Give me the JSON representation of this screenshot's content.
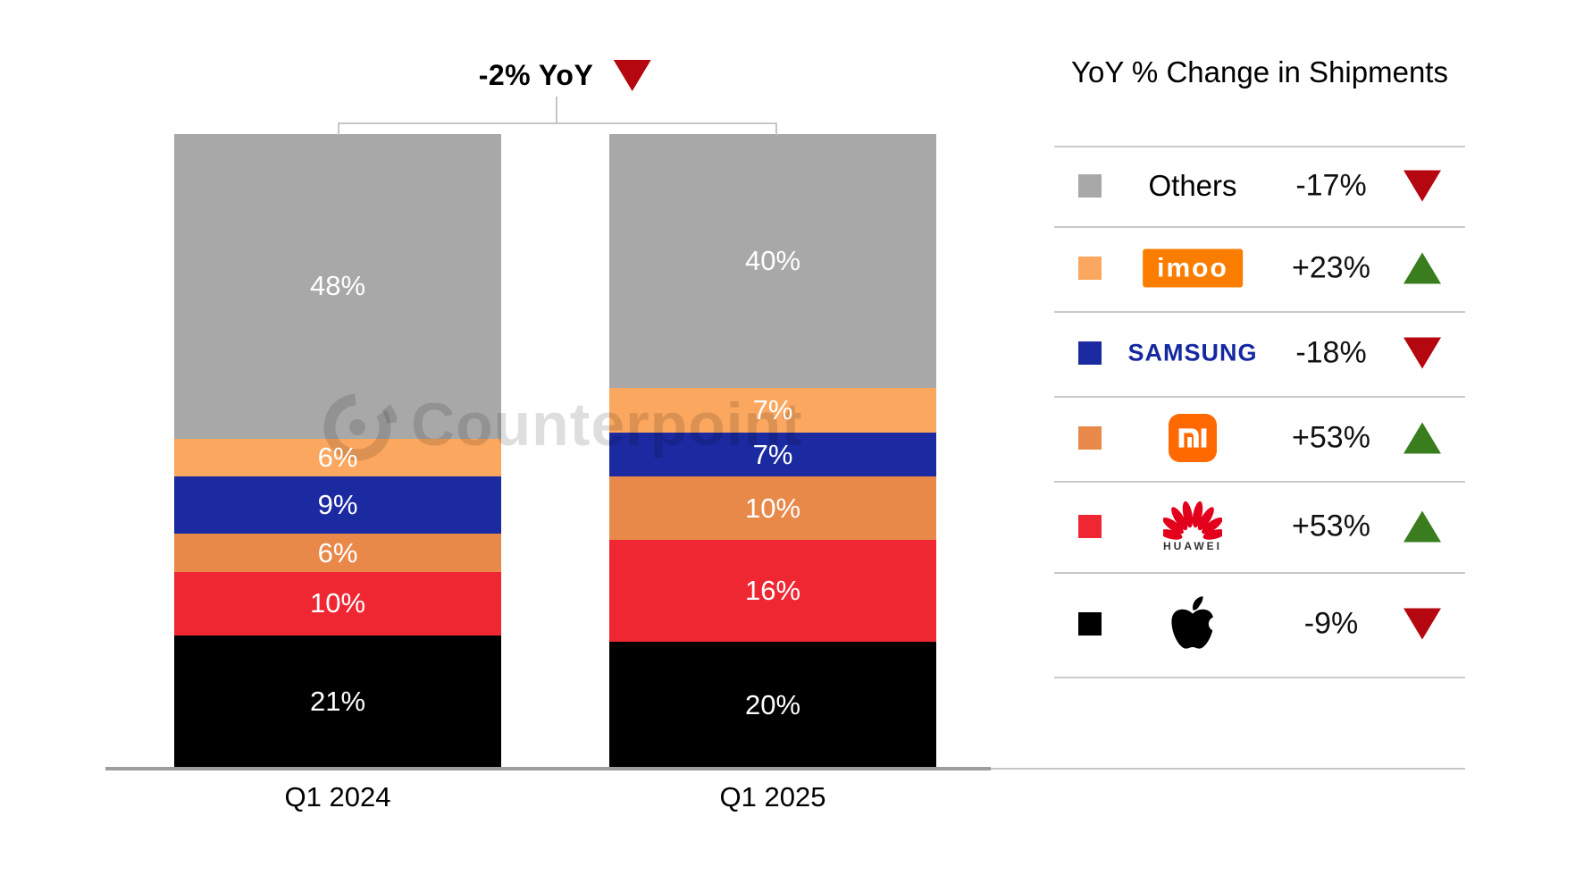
{
  "title": {
    "label": "-2% YoY",
    "direction": "down"
  },
  "watermark": {
    "text": "Counterpoint"
  },
  "chart_data": {
    "type": "bar",
    "stacked": true,
    "title": "-2% YoY",
    "unit": "%",
    "categories": [
      "Q1 2024",
      "Q1 2025"
    ],
    "series": [
      {
        "name": "Apple",
        "color": "#000000",
        "values": [
          21,
          20
        ]
      },
      {
        "name": "Huawei",
        "color": "#ee2733",
        "values": [
          10,
          16
        ]
      },
      {
        "name": "Xiaomi",
        "color": "#e8894a",
        "values": [
          6,
          10
        ]
      },
      {
        "name": "Samsung",
        "color": "#1b2aa0",
        "values": [
          9,
          7
        ]
      },
      {
        "name": "imoo",
        "color": "#fba75f",
        "values": [
          6,
          7
        ]
      },
      {
        "name": "Others",
        "color": "#a8a8a8",
        "values": [
          48,
          40
        ]
      }
    ],
    "ylim": [
      0,
      100
    ],
    "grid": false,
    "legend_position": "right"
  },
  "legend": {
    "header": "YoY % Change in Shipments",
    "rows": [
      {
        "brand": "Others",
        "logo_text": "Others",
        "change": "-17%",
        "direction": "down",
        "swatch": "#a8a8a8"
      },
      {
        "brand": "imoo",
        "logo_text": "imoo",
        "change": "+23%",
        "direction": "up",
        "swatch": "#fba75f"
      },
      {
        "brand": "Samsung",
        "logo_text": "SAMSUNG",
        "change": "-18%",
        "direction": "down",
        "swatch": "#1b2aa0"
      },
      {
        "brand": "Xiaomi",
        "logo_text": "mi",
        "change": "+53%",
        "direction": "up",
        "swatch": "#e8894a"
      },
      {
        "brand": "Huawei",
        "logo_text": "HUAWEI",
        "change": "+53%",
        "direction": "up",
        "swatch": "#ee2733"
      },
      {
        "brand": "Apple",
        "logo_text": "",
        "change": "-9%",
        "direction": "down",
        "swatch": "#000000"
      }
    ]
  }
}
